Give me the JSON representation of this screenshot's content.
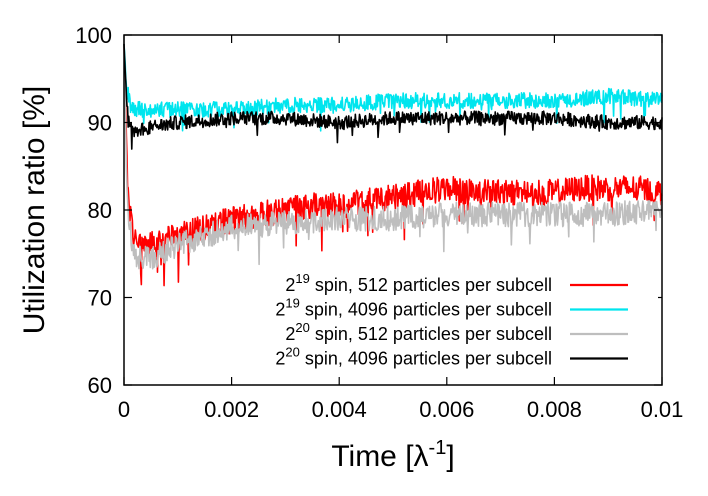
{
  "chart_data": {
    "type": "line",
    "xlabel": {
      "main": "Time [λ",
      "sup": "-1",
      "tail": "]"
    },
    "ylabel": "Utilization ratio [%]",
    "xlim": [
      0,
      0.01
    ],
    "ylim": [
      60,
      100
    ],
    "x_ticks": [
      0,
      0.002,
      0.004,
      0.006,
      0.008,
      0.01
    ],
    "x_tick_labels": [
      "0",
      "0.002",
      "0.004",
      "0.006",
      "0.008",
      "0.01"
    ],
    "y_ticks": [
      60,
      70,
      80,
      90,
      100
    ],
    "y_tick_labels": [
      "60",
      "70",
      "80",
      "90",
      "100"
    ],
    "grid": false,
    "legend_position": "bottom-right",
    "series": [
      {
        "name": {
          "base": "2",
          "sup": "19",
          "text": " spin, 512 particles per subcell"
        },
        "color": "#ff0000",
        "x": [
          0,
          5e-05,
          0.0001,
          0.0002,
          0.0005,
          0.001,
          0.0015,
          0.002,
          0.0025,
          0.003,
          0.0035,
          0.004,
          0.0045,
          0.005,
          0.0055,
          0.006,
          0.0065,
          0.007,
          0.0075,
          0.008,
          0.0085,
          0.009,
          0.0095,
          0.01
        ],
        "values": [
          99,
          86,
          80,
          76.5,
          76,
          77,
          78,
          79,
          79.5,
          80,
          80.5,
          80.5,
          81,
          81.5,
          82,
          82.5,
          82,
          82,
          82,
          82,
          82.5,
          82.5,
          82.5,
          82
        ],
        "noise": 1.5
      },
      {
        "name": {
          "base": "2",
          "sup": "19",
          "text": " spin, 4096 particles per subcell"
        },
        "color": "#00e5ee",
        "x": [
          0,
          5e-05,
          0.0001,
          0.0002,
          0.0005,
          0.001,
          0.002,
          0.003,
          0.004,
          0.005,
          0.006,
          0.007,
          0.008,
          0.009,
          0.01
        ],
        "values": [
          99,
          94,
          92.5,
          91.5,
          91.5,
          91.5,
          91.5,
          92,
          92,
          92.5,
          92.5,
          92.5,
          92.5,
          93,
          92.5
        ],
        "noise": 0.9
      },
      {
        "name": {
          "base": "2",
          "sup": "20",
          "text": " spin, 512 particles per subcell"
        },
        "color": "#bebebe",
        "x": [
          0,
          5e-05,
          0.0001,
          0.0002,
          0.0005,
          0.001,
          0.0015,
          0.002,
          0.003,
          0.004,
          0.005,
          0.006,
          0.007,
          0.008,
          0.009,
          0.01
        ],
        "values": [
          99,
          84,
          78,
          74.5,
          74.5,
          76,
          77,
          78,
          78.5,
          79,
          79,
          79.5,
          79.5,
          79.5,
          79.5,
          80
        ],
        "noise": 1.4
      },
      {
        "name": {
          "base": "2",
          "sup": "20",
          "text": " spin, 4096 particles per subcell"
        },
        "color": "#000000",
        "x": [
          0,
          5e-05,
          0.0001,
          0.0002,
          0.0005,
          0.001,
          0.002,
          0.003,
          0.004,
          0.005,
          0.006,
          0.007,
          0.008,
          0.009,
          0.01
        ],
        "values": [
          99,
          92,
          90,
          89,
          89.5,
          90,
          90.5,
          90.5,
          90,
          90.5,
          90.5,
          90.5,
          90.5,
          90,
          90
        ],
        "noise": 0.8
      }
    ]
  }
}
